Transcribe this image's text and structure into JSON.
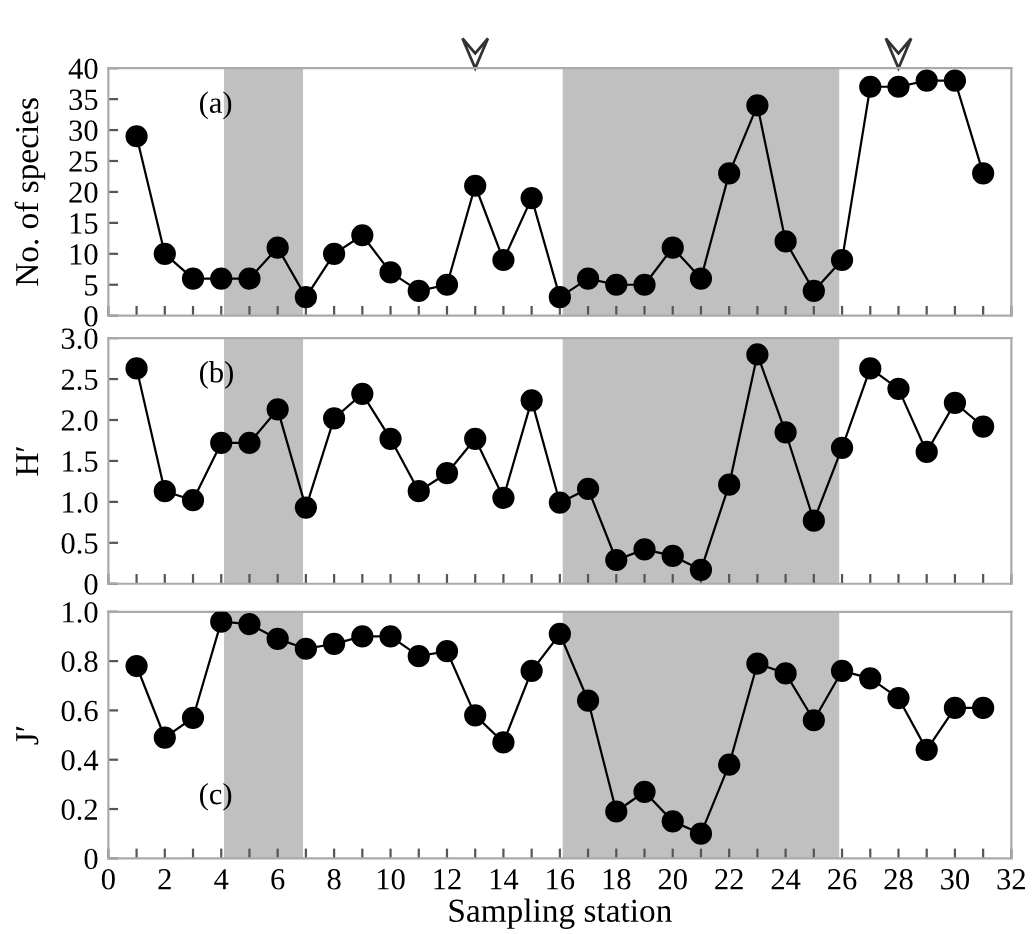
{
  "chart_data": [
    {
      "type": "line",
      "xlim": [
        0,
        32
      ],
      "xticks": [
        0,
        {
          "value": 1,
          "label": null
        },
        2,
        {
          "value": 3,
          "label": null
        },
        4,
        {
          "value": 5,
          "label": null
        },
        6,
        {
          "value": 7,
          "label": null
        },
        8,
        {
          "value": 9,
          "label": null
        },
        10,
        {
          "value": 11,
          "label": null
        },
        12,
        {
          "value": 13,
          "label": null
        },
        14,
        {
          "value": 15,
          "label": null
        },
        16,
        {
          "value": 17,
          "label": null
        },
        18,
        {
          "value": 19,
          "label": null
        },
        20,
        {
          "value": 21,
          "label": null
        },
        22,
        {
          "value": 23,
          "label": null
        },
        24,
        {
          "value": 25,
          "label": null
        },
        26,
        {
          "value": 27,
          "label": null
        },
        28,
        {
          "value": 29,
          "label": null
        },
        30,
        {
          "value": 31,
          "label": null
        },
        32
      ],
      "ylim": [
        0,
        40
      ],
      "yticks": [
        0,
        5,
        10,
        15,
        20,
        25,
        30,
        35,
        40
      ],
      "ylabel": "No. of species",
      "annotations": [
        "(a)"
      ],
      "tick_labels": "y",
      "marker": "circle",
      "line_style": "solid",
      "grid": false,
      "legend": false,
      "x": [
        1,
        2,
        3,
        4,
        5,
        6,
        7,
        8,
        9,
        10,
        11,
        12,
        13,
        14,
        15,
        16,
        17,
        18,
        19,
        20,
        21,
        22,
        23,
        24,
        25,
        26,
        27,
        28,
        29,
        30,
        31
      ],
      "bands": [
        {
          "axis": "x",
          "from": 4.1,
          "to": 6.9,
          "color": "#c0c0c0"
        },
        {
          "axis": "x",
          "from": 16.1,
          "to": 25.9,
          "color": "#c0c0c0"
        }
      ],
      "series": [
        {
          "color": "#000000",
          "values": [
            29,
            10,
            6,
            6,
            6,
            11,
            3,
            10,
            13,
            7,
            4,
            5,
            21,
            9,
            19,
            3,
            6,
            5,
            5,
            11,
            6,
            23,
            34,
            12,
            4,
            9,
            37,
            37,
            38,
            38,
            23
          ]
        }
      ]
    },
    {
      "type": "line",
      "xlim": [
        0,
        32
      ],
      "xticks": [
        0,
        {
          "value": 1,
          "label": null
        },
        2,
        {
          "value": 3,
          "label": null
        },
        4,
        {
          "value": 5,
          "label": null
        },
        6,
        {
          "value": 7,
          "label": null
        },
        8,
        {
          "value": 9,
          "label": null
        },
        10,
        {
          "value": 11,
          "label": null
        },
        12,
        {
          "value": 13,
          "label": null
        },
        14,
        {
          "value": 15,
          "label": null
        },
        16,
        {
          "value": 17,
          "label": null
        },
        18,
        {
          "value": 19,
          "label": null
        },
        20,
        {
          "value": 21,
          "label": null
        },
        22,
        {
          "value": 23,
          "label": null
        },
        24,
        {
          "value": 25,
          "label": null
        },
        26,
        {
          "value": 27,
          "label": null
        },
        28,
        {
          "value": 29,
          "label": null
        },
        30,
        {
          "value": 31,
          "label": null
        },
        32
      ],
      "ylim": [
        0,
        3.0
      ],
      "yticks": [
        0,
        {
          "value": 0.5,
          "label": "0.5"
        },
        {
          "value": 1,
          "label": "1.0"
        },
        {
          "value": 1.5,
          "label": "1.5"
        },
        {
          "value": 2,
          "label": "2.0"
        },
        {
          "value": 2.5,
          "label": "2.5"
        },
        {
          "value": 3,
          "label": "3.0"
        }
      ],
      "ylabel": "H′",
      "annotations": [
        "(b)"
      ],
      "tick_labels": "y",
      "marker": "circle",
      "line_style": "solid",
      "grid": false,
      "legend": false,
      "x": [
        1,
        2,
        3,
        4,
        5,
        6,
        7,
        8,
        9,
        10,
        11,
        12,
        13,
        14,
        15,
        16,
        17,
        18,
        19,
        20,
        21,
        22,
        23,
        24,
        25,
        26,
        27,
        28,
        29,
        30,
        31
      ],
      "bands": [
        {
          "axis": "x",
          "from": 4.1,
          "to": 6.9,
          "color": "#c0c0c0"
        },
        {
          "axis": "x",
          "from": 16.1,
          "to": 25.9,
          "color": "#c0c0c0"
        }
      ],
      "series": [
        {
          "color": "#000000",
          "values": [
            2.63,
            1.13,
            1.02,
            1.72,
            1.72,
            2.13,
            0.93,
            2.02,
            2.32,
            1.77,
            1.13,
            1.35,
            1.77,
            1.05,
            2.24,
            0.99,
            1.16,
            0.29,
            0.42,
            0.34,
            0.17,
            1.21,
            2.8,
            1.85,
            0.77,
            1.66,
            2.63,
            2.38,
            1.61,
            2.21,
            1.92
          ]
        }
      ]
    },
    {
      "type": "line",
      "xlim": [
        0,
        32
      ],
      "xticks": [
        0,
        {
          "value": 1,
          "label": null
        },
        2,
        {
          "value": 3,
          "label": null
        },
        4,
        {
          "value": 5,
          "label": null
        },
        6,
        {
          "value": 7,
          "label": null
        },
        8,
        {
          "value": 9,
          "label": null
        },
        10,
        {
          "value": 11,
          "label": null
        },
        12,
        {
          "value": 13,
          "label": null
        },
        14,
        {
          "value": 15,
          "label": null
        },
        16,
        {
          "value": 17,
          "label": null
        },
        18,
        {
          "value": 19,
          "label": null
        },
        20,
        {
          "value": 21,
          "label": null
        },
        22,
        {
          "value": 23,
          "label": null
        },
        24,
        {
          "value": 25,
          "label": null
        },
        26,
        {
          "value": 27,
          "label": null
        },
        28,
        {
          "value": 29,
          "label": null
        },
        30,
        {
          "value": 31,
          "label": null
        },
        32
      ],
      "ylim": [
        0,
        1.0
      ],
      "yticks": [
        0,
        {
          "value": 0.2,
          "label": "0.2"
        },
        {
          "value": 0.4,
          "label": "0.4"
        },
        {
          "value": 0.6,
          "label": "0.6"
        },
        {
          "value": 0.8,
          "label": "0.8"
        },
        {
          "value": 1,
          "label": "1.0"
        }
      ],
      "ylabel": "J′",
      "xlabel": "Sampling station",
      "annotations": [
        "(c)"
      ],
      "marker": "circle",
      "line_style": "solid",
      "grid": false,
      "legend": false,
      "x": [
        1,
        2,
        3,
        4,
        5,
        6,
        7,
        8,
        9,
        10,
        11,
        12,
        13,
        14,
        15,
        16,
        17,
        18,
        19,
        20,
        21,
        22,
        23,
        24,
        25,
        26,
        27,
        28,
        29,
        30,
        31
      ],
      "bands": [
        {
          "axis": "x",
          "from": 4.1,
          "to": 6.9,
          "color": "#c0c0c0"
        },
        {
          "axis": "x",
          "from": 16.1,
          "to": 25.9,
          "color": "#c0c0c0"
        }
      ],
      "series": [
        {
          "color": "#000000",
          "values": [
            0.78,
            0.49,
            0.57,
            0.96,
            0.95,
            0.89,
            0.85,
            0.87,
            0.9,
            0.9,
            0.82,
            0.84,
            0.58,
            0.47,
            0.76,
            0.91,
            0.64,
            0.19,
            0.27,
            0.15,
            0.1,
            0.38,
            0.79,
            0.75,
            0.56,
            0.76,
            0.73,
            0.65,
            0.44,
            0.61,
            0.61
          ]
        }
      ]
    }
  ]
}
